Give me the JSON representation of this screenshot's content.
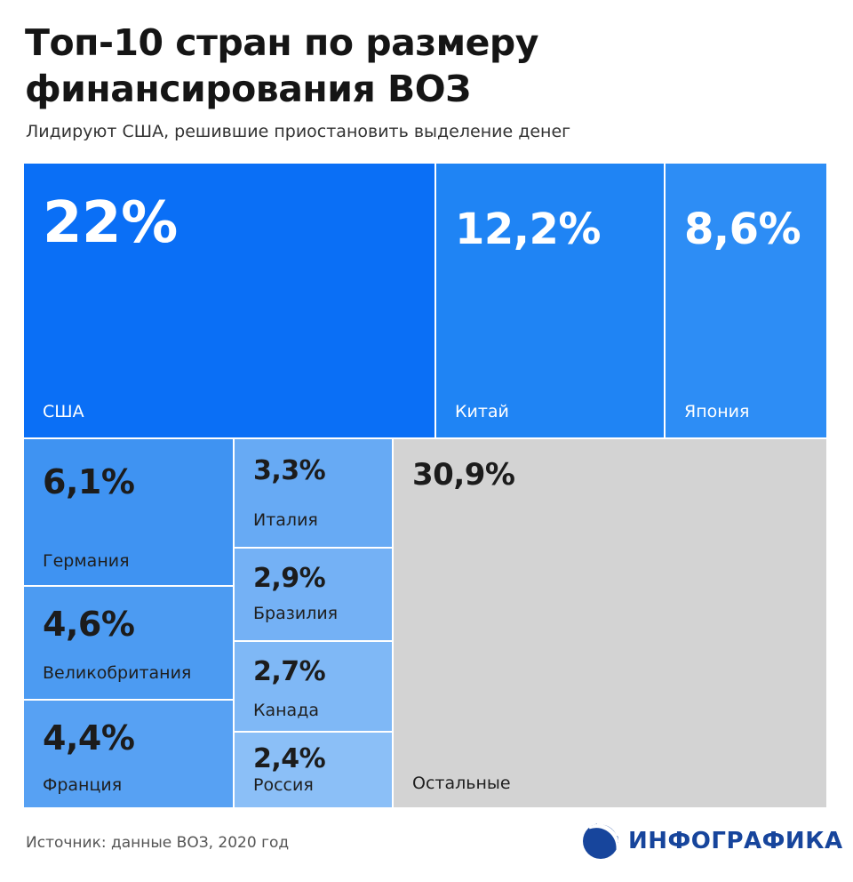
{
  "chart_data": {
    "type": "treemap",
    "title": "Топ-10 стран по размеру финансирования ВОЗ",
    "subtitle": "Лидируют США, решившие приостановить выделение денег",
    "unit": "%",
    "items": [
      {
        "label": "США",
        "value": 22,
        "value_text": "22%",
        "color": "#0A6FF6"
      },
      {
        "label": "Китай",
        "value": 12.2,
        "value_text": "12,2%",
        "color": "#1F84F4"
      },
      {
        "label": "Япония",
        "value": 8.6,
        "value_text": "8,6%",
        "color": "#2D8DF5"
      },
      {
        "label": "Германия",
        "value": 6.1,
        "value_text": "6,1%",
        "color": "#3F93F2"
      },
      {
        "label": "Великобритания",
        "value": 4.6,
        "value_text": "4,6%",
        "color": "#4C9BF2"
      },
      {
        "label": "Франция",
        "value": 4.4,
        "value_text": "4,4%",
        "color": "#57A1F3"
      },
      {
        "label": "Италия",
        "value": 3.3,
        "value_text": "3,3%",
        "color": "#67AAF4"
      },
      {
        "label": "Бразилия",
        "value": 2.9,
        "value_text": "2,9%",
        "color": "#74B1F5"
      },
      {
        "label": "Канада",
        "value": 2.7,
        "value_text": "2,7%",
        "color": "#7FB8F6"
      },
      {
        "label": "Россия",
        "value": 2.4,
        "value_text": "2,4%",
        "color": "#8BBFF7"
      },
      {
        "label": "Остальные",
        "value": 30.9,
        "value_text": "30,9%",
        "color": "#D3D3D3"
      }
    ]
  },
  "footer": {
    "source": "Источник: данные ВОЗ, 2020 год",
    "logo": "ИНФОГРАФИКА",
    "logo_color": "#17459C"
  }
}
